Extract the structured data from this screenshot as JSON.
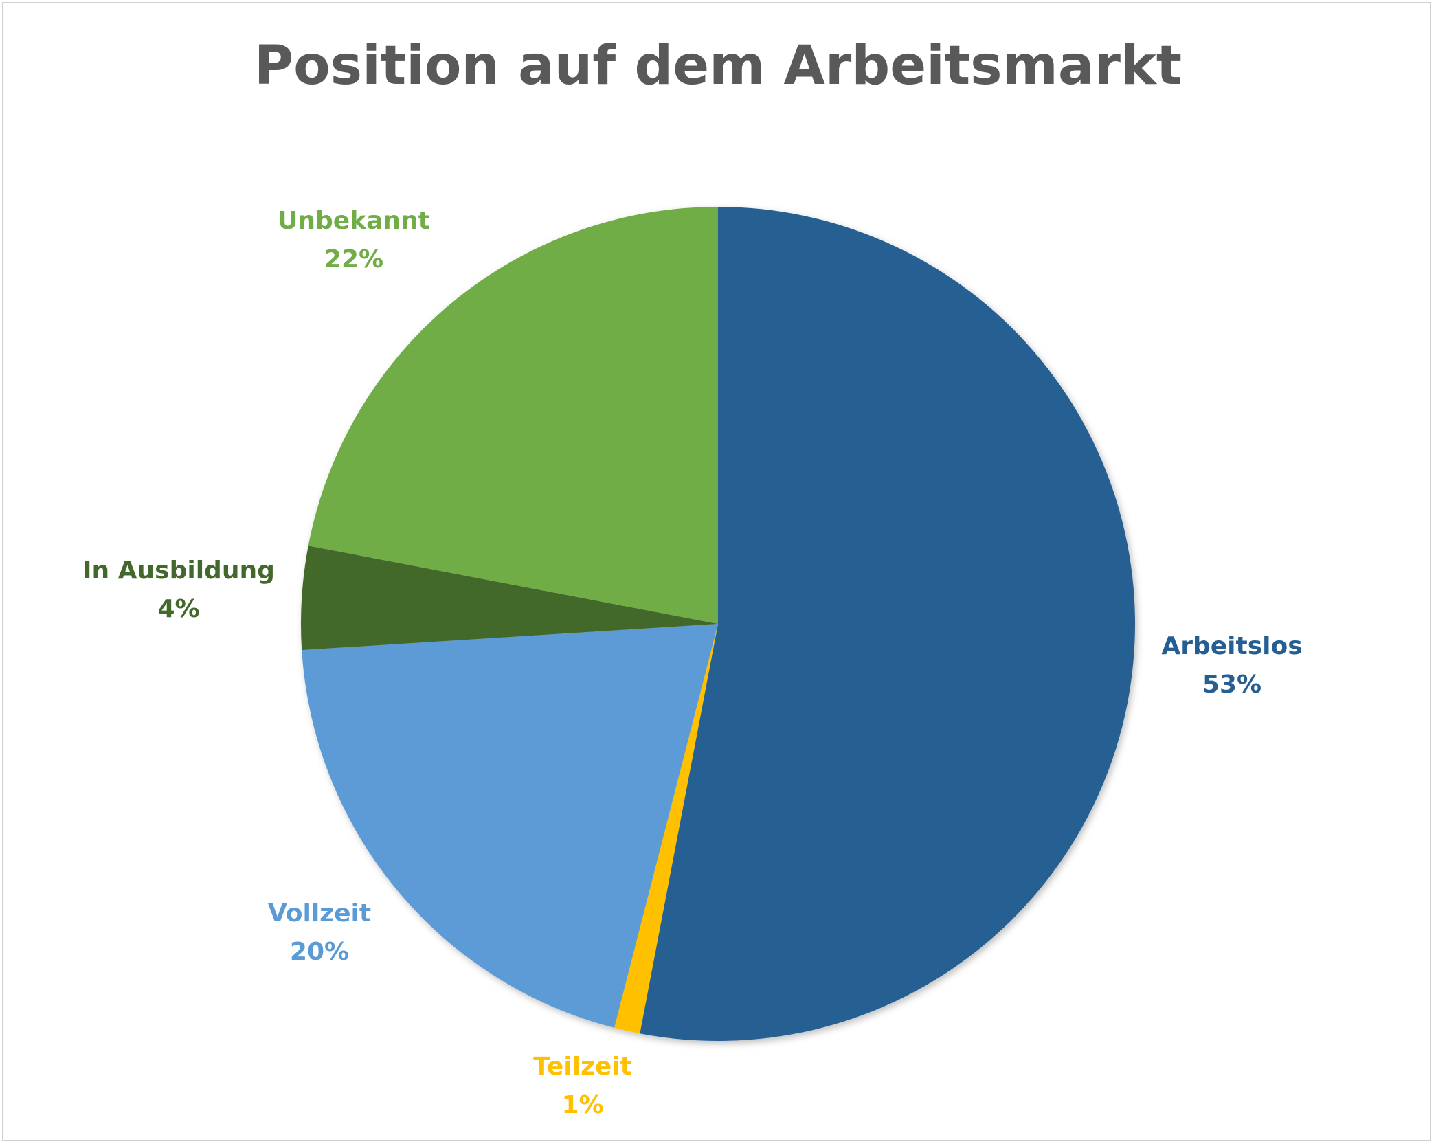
{
  "chart_data": {
    "type": "pie",
    "title": "Position auf dem Arbeitsmarkt",
    "slices": [
      {
        "name": "Arbeitslos",
        "value": 53,
        "label": "53%",
        "color": "#255E91"
      },
      {
        "name": "Teilzeit",
        "value": 1,
        "label": "1%",
        "color": "#FFC000"
      },
      {
        "name": "Vollzeit",
        "value": 20,
        "label": "20%",
        "color": "#5B9BD5"
      },
      {
        "name": "In Ausbildung",
        "value": 4,
        "label": "4%",
        "color": "#43682B"
      },
      {
        "name": "Unbekannt",
        "value": 22,
        "label": "22%",
        "color": "#70AD47"
      }
    ],
    "start": "12 o'clock, clockwise",
    "legend": "none (labels outside slices)"
  }
}
